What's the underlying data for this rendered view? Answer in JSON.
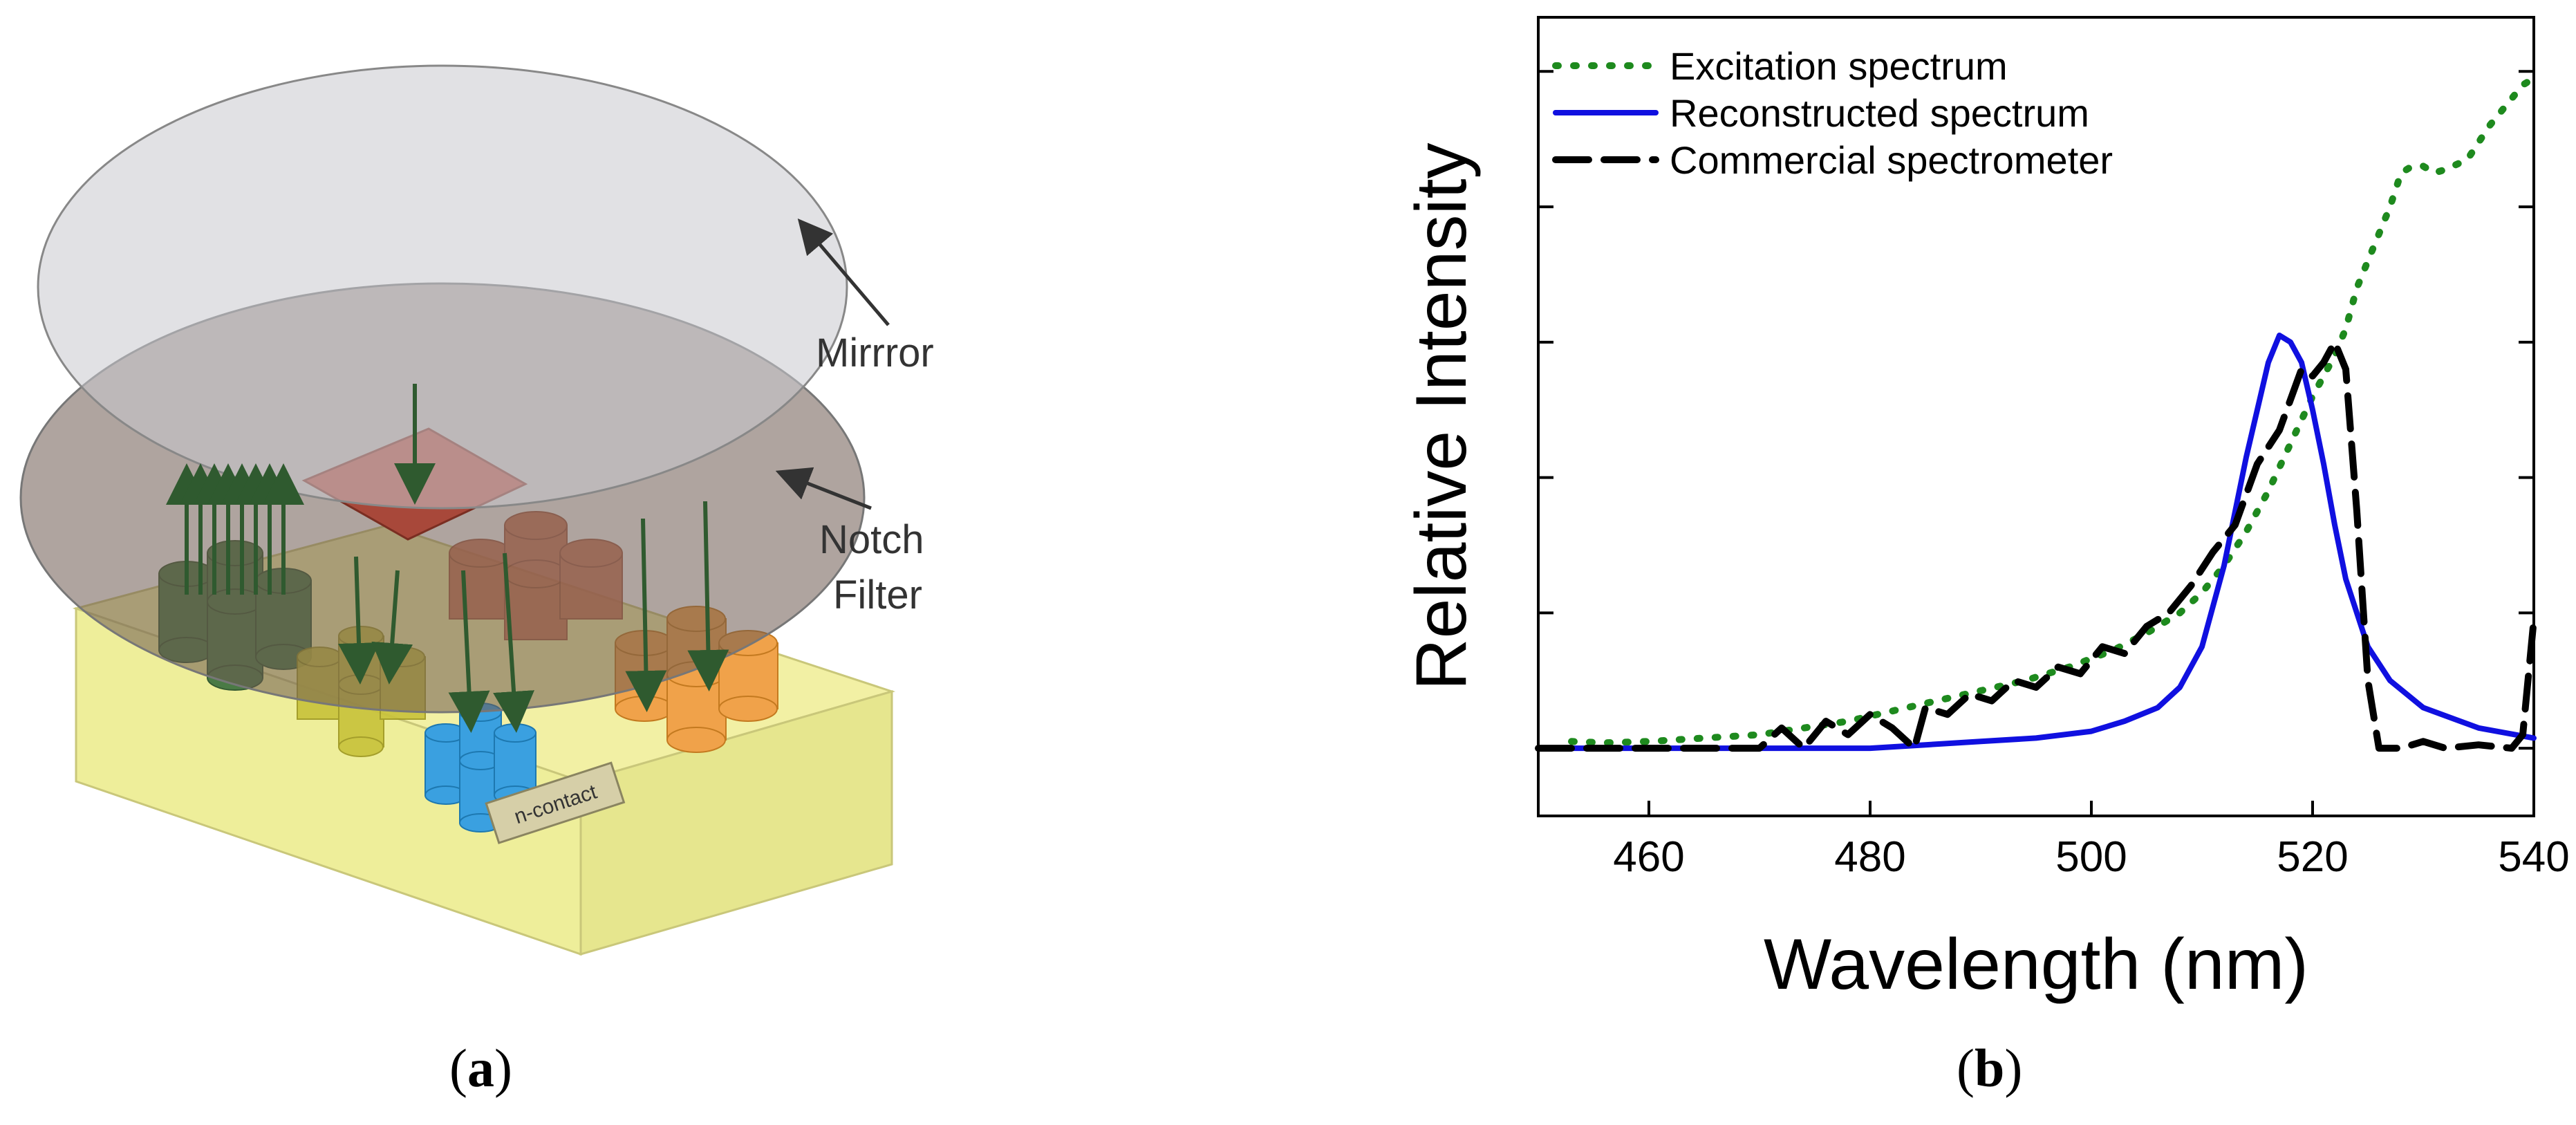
{
  "figure": {
    "panel_a": {
      "caption_label": "a",
      "labels": {
        "mirror": "Mirrror",
        "notch_line1": "Notch",
        "notch_line2": "Filter",
        "n_contact": "n-contact"
      }
    },
    "panel_b": {
      "caption_label": "b"
    }
  },
  "chart_data": {
    "type": "line",
    "title": "",
    "xlabel": "Wavelength (nm)",
    "ylabel": "Relative Intensity",
    "xlim": [
      450,
      540
    ],
    "ylim": [
      -0.1,
      1.08
    ],
    "x_ticks": [
      460,
      480,
      500,
      520,
      540
    ],
    "y_ticks": [
      0,
      0.2,
      0.4,
      0.6,
      0.8,
      1.0
    ],
    "show_y_tick_labels": false,
    "grid": false,
    "legend_position": "top-left",
    "series": [
      {
        "name": "Excitation spectrum",
        "color": "#1e8a1e",
        "style": "dotted",
        "points": [
          [
            453,
            0.01
          ],
          [
            456,
            0.008
          ],
          [
            460,
            0.01
          ],
          [
            465,
            0.015
          ],
          [
            470,
            0.02
          ],
          [
            474,
            0.03
          ],
          [
            478,
            0.04
          ],
          [
            482,
            0.055
          ],
          [
            486,
            0.07
          ],
          [
            490,
            0.085
          ],
          [
            494,
            0.1
          ],
          [
            498,
            0.12
          ],
          [
            502,
            0.145
          ],
          [
            505,
            0.17
          ],
          [
            508,
            0.2
          ],
          [
            510,
            0.23
          ],
          [
            512,
            0.27
          ],
          [
            514,
            0.32
          ],
          [
            516,
            0.38
          ],
          [
            518,
            0.45
          ],
          [
            520,
            0.52
          ],
          [
            522,
            0.58
          ],
          [
            523,
            0.62
          ],
          [
            524,
            0.68
          ],
          [
            526,
            0.76
          ],
          [
            527,
            0.8
          ],
          [
            528,
            0.85
          ],
          [
            529,
            0.86
          ],
          [
            530,
            0.86
          ],
          [
            531,
            0.85
          ],
          [
            532,
            0.855
          ],
          [
            534,
            0.87
          ],
          [
            536,
            0.92
          ],
          [
            538,
            0.96
          ],
          [
            539,
            0.98
          ],
          [
            540,
            0.99
          ]
        ]
      },
      {
        "name": "Reconstructed spectrum",
        "color": "#1010e0",
        "style": "solid",
        "points": [
          [
            450,
            0.0
          ],
          [
            480,
            0.0
          ],
          [
            485,
            0.005
          ],
          [
            490,
            0.01
          ],
          [
            495,
            0.015
          ],
          [
            500,
            0.025
          ],
          [
            503,
            0.04
          ],
          [
            506,
            0.06
          ],
          [
            508,
            0.09
          ],
          [
            510,
            0.15
          ],
          [
            512,
            0.27
          ],
          [
            514,
            0.43
          ],
          [
            516,
            0.57
          ],
          [
            517,
            0.61
          ],
          [
            518,
            0.6
          ],
          [
            519,
            0.57
          ],
          [
            520,
            0.5
          ],
          [
            521,
            0.42
          ],
          [
            522,
            0.33
          ],
          [
            523,
            0.25
          ],
          [
            525,
            0.15
          ],
          [
            527,
            0.1
          ],
          [
            530,
            0.06
          ],
          [
            535,
            0.03
          ],
          [
            540,
            0.015
          ]
        ]
      },
      {
        "name": "Commercial spectrometer",
        "color": "#000000",
        "style": "dashed",
        "points": [
          [
            450,
            0.0
          ],
          [
            470,
            0.0
          ],
          [
            472,
            0.03
          ],
          [
            474,
            0.0
          ],
          [
            476,
            0.04
          ],
          [
            478,
            0.02
          ],
          [
            480,
            0.05
          ],
          [
            482,
            0.03
          ],
          [
            484,
            0.0
          ],
          [
            485,
            0.06
          ],
          [
            487,
            0.05
          ],
          [
            489,
            0.08
          ],
          [
            491,
            0.07
          ],
          [
            493,
            0.1
          ],
          [
            495,
            0.09
          ],
          [
            497,
            0.12
          ],
          [
            499,
            0.11
          ],
          [
            501,
            0.15
          ],
          [
            503,
            0.14
          ],
          [
            505,
            0.18
          ],
          [
            507,
            0.2
          ],
          [
            509,
            0.24
          ],
          [
            511,
            0.29
          ],
          [
            513,
            0.33
          ],
          [
            515,
            0.42
          ],
          [
            517,
            0.47
          ],
          [
            519,
            0.56
          ],
          [
            520,
            0.55
          ],
          [
            521,
            0.57
          ],
          [
            522,
            0.6
          ],
          [
            523,
            0.56
          ],
          [
            524,
            0.35
          ],
          [
            525,
            0.1
          ],
          [
            526,
            0.0
          ],
          [
            528,
            0.0
          ],
          [
            530,
            0.01
          ],
          [
            532,
            0.0
          ],
          [
            535,
            0.005
          ],
          [
            538,
            0.0
          ],
          [
            539,
            0.02
          ],
          [
            540,
            0.19
          ]
        ]
      }
    ]
  }
}
